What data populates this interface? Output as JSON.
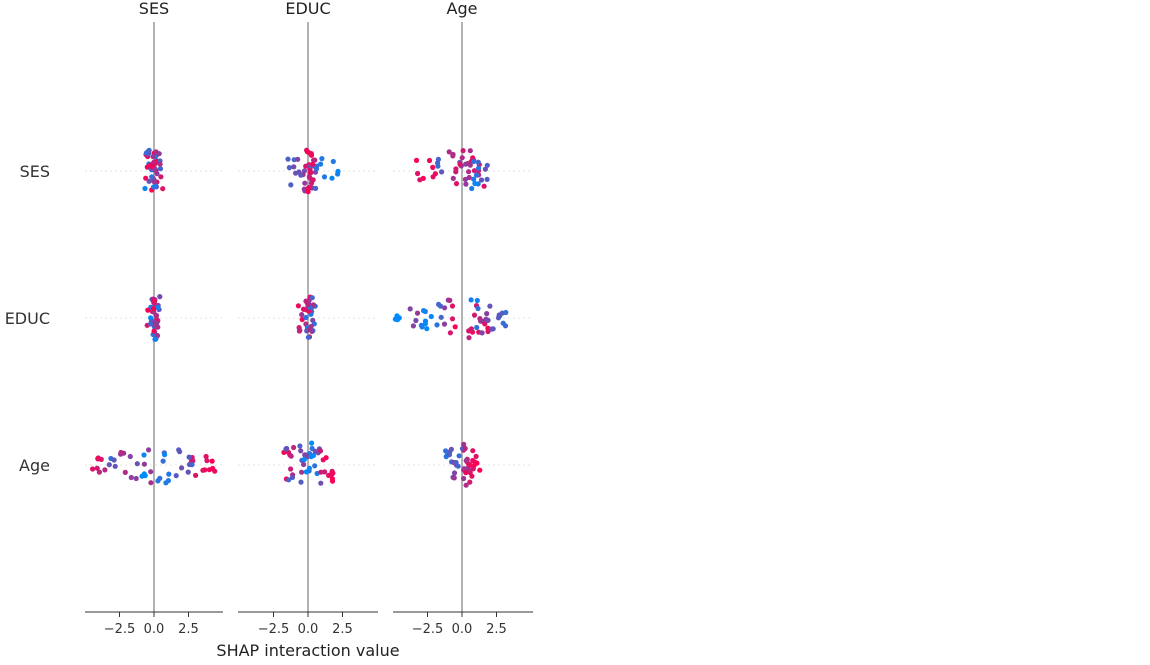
{
  "chart_data": {
    "type": "scatter",
    "xlabel": "SHAP interaction value",
    "feature_names": [
      "SES",
      "EDUC",
      "Age"
    ],
    "xticks": [
      -2.5,
      0.0,
      2.5
    ],
    "xlim": [
      -5.0,
      5.8
    ],
    "grid": false,
    "colors": {
      "low": "#008bfb",
      "high": "#ff0052",
      "zero_line": "#999999",
      "axis": "#333333",
      "row_guide": "#e6e6e6"
    },
    "cells": [
      {
        "row": "SES",
        "col": "SES",
        "points": [
          [
            0.22,
            0.6
          ],
          [
            0.1,
            1.0
          ],
          [
            0.18,
            0.3
          ],
          [
            -0.4,
            0.1
          ],
          [
            -0.55,
            0.9
          ],
          [
            -0.2,
            0.5
          ],
          [
            0.35,
            0.8
          ],
          [
            0.05,
            0.95
          ],
          [
            0.2,
            0.4
          ],
          [
            -0.1,
            0.2
          ],
          [
            0.15,
            0.7
          ],
          [
            0.3,
            0.6
          ],
          [
            -0.3,
            0.25
          ]
        ]
      },
      {
        "row": "SES",
        "col": "EDUC",
        "points": [
          [
            0.3,
            0.5
          ],
          [
            -0.2,
            0.4
          ],
          [
            0.1,
            0.8
          ],
          [
            0.9,
            0.2
          ],
          [
            1.9,
            0.1
          ],
          [
            -1.2,
            0.3
          ],
          [
            0.0,
            0.95
          ],
          [
            0.5,
            0.7
          ],
          [
            -0.5,
            0.6
          ],
          [
            0.2,
            0.9
          ],
          [
            -0.8,
            0.4
          ],
          [
            0.4,
            0.3
          ],
          [
            0.1,
            1.0
          ]
        ]
      },
      {
        "row": "SES",
        "col": "Age",
        "points": [
          [
            0.8,
            0.9
          ],
          [
            1.5,
            0.8
          ],
          [
            -3.1,
            0.95
          ],
          [
            -2.2,
            1.0
          ],
          [
            -1.5,
            0.3
          ],
          [
            0.5,
            0.6
          ],
          [
            1.2,
            0.2
          ],
          [
            -0.8,
            0.7
          ],
          [
            1.7,
            0.4
          ],
          [
            0.0,
            0.5
          ],
          [
            -0.2,
            0.85
          ],
          [
            1.0,
            0.1
          ],
          [
            0.3,
            0.75
          ]
        ]
      },
      {
        "row": "EDUC",
        "col": "SES",
        "points": [
          [
            0.0,
            0.1
          ],
          [
            0.1,
            0.3
          ],
          [
            -0.3,
            0.9
          ],
          [
            0.15,
            0.5
          ],
          [
            -0.1,
            0.2
          ],
          [
            0.2,
            0.7
          ],
          [
            0.05,
            0.4
          ],
          [
            -0.05,
            0.85
          ],
          [
            0.1,
            0.6
          ],
          [
            0.0,
            0.15
          ],
          [
            -0.2,
            0.95
          ]
        ]
      },
      {
        "row": "EDUC",
        "col": "EDUC",
        "points": [
          [
            -0.4,
            0.9
          ],
          [
            0.1,
            0.5
          ],
          [
            0.3,
            0.3
          ],
          [
            -0.2,
            0.7
          ],
          [
            0.2,
            0.1
          ],
          [
            0.0,
            0.95
          ],
          [
            -0.1,
            0.4
          ],
          [
            0.35,
            0.6
          ],
          [
            0.05,
            0.2
          ],
          [
            -0.3,
            0.8
          ]
        ]
      },
      {
        "row": "EDUC",
        "col": "Age",
        "points": [
          [
            -4.7,
            0.0
          ],
          [
            -2.5,
            0.1
          ],
          [
            -1.8,
            0.2
          ],
          [
            -0.6,
            0.9
          ],
          [
            1.2,
            0.8
          ],
          [
            1.8,
            0.95
          ],
          [
            2.5,
            0.3
          ],
          [
            3.2,
            0.25
          ],
          [
            0.5,
            0.85
          ],
          [
            -3.5,
            0.5
          ],
          [
            -1.0,
            0.6
          ],
          [
            1.5,
            0.5
          ],
          [
            0.9,
            0.15
          ],
          [
            -2.8,
            0.05
          ],
          [
            2.1,
            0.4
          ]
        ]
      },
      {
        "row": "Age",
        "col": "SES",
        "points": [
          [
            -3.8,
            0.8
          ],
          [
            -3.0,
            0.3
          ],
          [
            -1.5,
            0.5
          ],
          [
            -0.8,
            0.0
          ],
          [
            0.5,
            0.2
          ],
          [
            1.8,
            0.4
          ],
          [
            3.0,
            0.9
          ],
          [
            4.2,
            0.95
          ],
          [
            5.0,
            1.0
          ],
          [
            -2.2,
            0.7
          ],
          [
            -0.4,
            0.6
          ],
          [
            2.5,
            0.3
          ],
          [
            3.6,
            0.85
          ],
          [
            -4.2,
            0.9
          ],
          [
            1.0,
            0.1
          ]
        ]
      },
      {
        "row": "Age",
        "col": "EDUC",
        "points": [
          [
            -1.6,
            0.9
          ],
          [
            -1.0,
            0.7
          ],
          [
            -0.4,
            0.4
          ],
          [
            0.2,
            0.2
          ],
          [
            0.7,
            0.5
          ],
          [
            1.5,
            0.95
          ],
          [
            2.0,
            1.0
          ],
          [
            0.4,
            0.1
          ],
          [
            -0.2,
            0.6
          ],
          [
            1.0,
            0.8
          ],
          [
            -1.3,
            0.3
          ],
          [
            0.0,
            0.0
          ]
        ]
      },
      {
        "row": "Age",
        "col": "Age",
        "points": [
          [
            -1.0,
            0.2
          ],
          [
            -0.5,
            0.5
          ],
          [
            0.2,
            0.8
          ],
          [
            0.6,
            0.95
          ],
          [
            1.0,
            1.0
          ],
          [
            0.4,
            0.6
          ],
          [
            -0.2,
            0.3
          ],
          [
            0.8,
            0.9
          ],
          [
            -0.8,
            0.4
          ],
          [
            0.1,
            0.7
          ],
          [
            0.5,
            0.85
          ]
        ]
      }
    ]
  }
}
